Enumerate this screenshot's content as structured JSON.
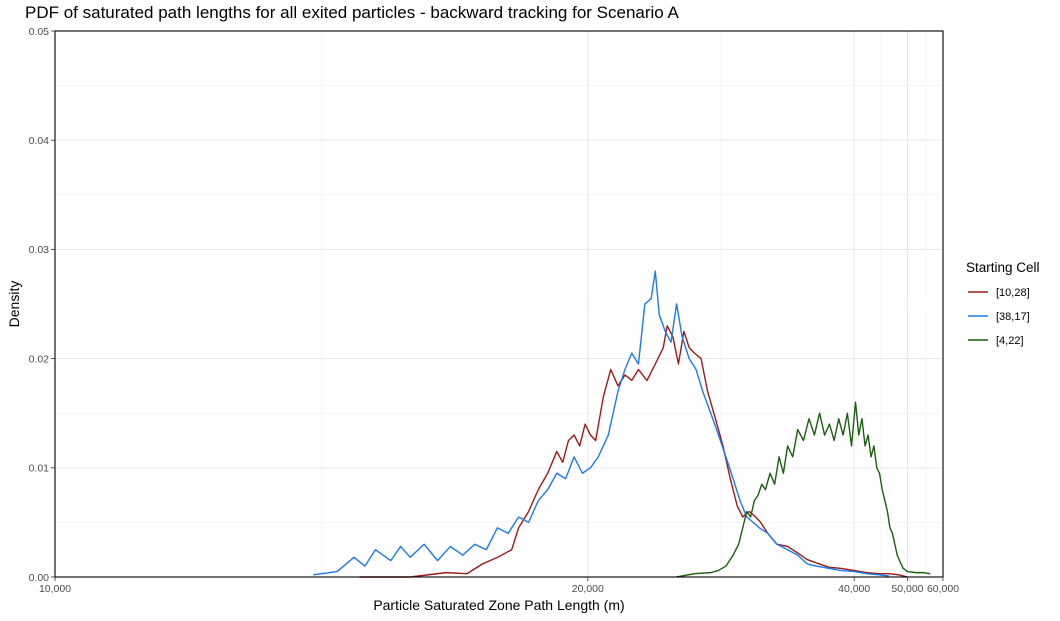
{
  "chart_data": {
    "type": "line",
    "title": "PDF of saturated path lengths for all exited particles - backward tracking for Scenario A",
    "xlabel": "Particle Saturated Zone Path Length (m)",
    "ylabel": "Density",
    "xlim": [
      10000,
      60000
    ],
    "ylim": [
      0,
      0.05
    ],
    "x_scale": "reciprocal",
    "xticks": [
      10000,
      20000,
      40000,
      50000,
      60000
    ],
    "xtick_labels": [
      "10,000",
      "20,000",
      "40,000",
      "50,000",
      "60,000"
    ],
    "yticks": [
      0,
      0.01,
      0.02,
      0.03,
      0.04,
      0.05
    ],
    "ytick_labels": [
      "0.00",
      "0.01",
      "0.02",
      "0.03",
      "0.04",
      "0.05"
    ],
    "grid": true,
    "legend": {
      "title": "Starting Cell",
      "position": "right"
    },
    "series": [
      {
        "name": "[10,28]",
        "color": "#9e1a1a",
        "points": [
          [
            14000,
            0.0
          ],
          [
            15000,
            0.0
          ],
          [
            15800,
            0.0004
          ],
          [
            16300,
            0.0003
          ],
          [
            16700,
            0.0012
          ],
          [
            17100,
            0.0018
          ],
          [
            17500,
            0.0025
          ],
          [
            17700,
            0.0045
          ],
          [
            18000,
            0.006
          ],
          [
            18300,
            0.008
          ],
          [
            18600,
            0.0095
          ],
          [
            18900,
            0.0115
          ],
          [
            19100,
            0.0105
          ],
          [
            19300,
            0.0125
          ],
          [
            19500,
            0.013
          ],
          [
            19700,
            0.012
          ],
          [
            19900,
            0.014
          ],
          [
            20100,
            0.013
          ],
          [
            20300,
            0.0125
          ],
          [
            20600,
            0.0165
          ],
          [
            20900,
            0.019
          ],
          [
            21200,
            0.0175
          ],
          [
            21500,
            0.0185
          ],
          [
            21800,
            0.018
          ],
          [
            22100,
            0.019
          ],
          [
            22500,
            0.018
          ],
          [
            22900,
            0.0195
          ],
          [
            23300,
            0.021
          ],
          [
            23500,
            0.023
          ],
          [
            23800,
            0.022
          ],
          [
            24100,
            0.0195
          ],
          [
            24400,
            0.0225
          ],
          [
            24700,
            0.021
          ],
          [
            25000,
            0.0205
          ],
          [
            25400,
            0.02
          ],
          [
            25800,
            0.017
          ],
          [
            26300,
            0.0145
          ],
          [
            26800,
            0.012
          ],
          [
            27300,
            0.009
          ],
          [
            27800,
            0.0065
          ],
          [
            28200,
            0.0055
          ],
          [
            28700,
            0.006
          ],
          [
            29200,
            0.0055
          ],
          [
            29600,
            0.005
          ],
          [
            30200,
            0.004
          ],
          [
            31000,
            0.003
          ],
          [
            32000,
            0.0028
          ],
          [
            33000,
            0.0022
          ],
          [
            34000,
            0.0016
          ],
          [
            35000,
            0.0013
          ],
          [
            36500,
            0.0009
          ],
          [
            38000,
            0.0008
          ],
          [
            40000,
            0.0006
          ],
          [
            42000,
            0.0004
          ],
          [
            44000,
            0.0003
          ],
          [
            46000,
            0.0003
          ],
          [
            48000,
            0.0002
          ],
          [
            50000,
            0.0
          ]
        ]
      },
      {
        "name": "[38,17]",
        "color": "#1a7bf0",
        "points": [
          [
            13200,
            0.0002
          ],
          [
            13600,
            0.0005
          ],
          [
            13900,
            0.0018
          ],
          [
            14100,
            0.001
          ],
          [
            14300,
            0.0025
          ],
          [
            14600,
            0.0015
          ],
          [
            14800,
            0.0028
          ],
          [
            15000,
            0.0018
          ],
          [
            15300,
            0.003
          ],
          [
            15600,
            0.0015
          ],
          [
            15900,
            0.0028
          ],
          [
            16200,
            0.002
          ],
          [
            16500,
            0.003
          ],
          [
            16800,
            0.0025
          ],
          [
            17100,
            0.0045
          ],
          [
            17400,
            0.004
          ],
          [
            17700,
            0.0055
          ],
          [
            18000,
            0.005
          ],
          [
            18300,
            0.007
          ],
          [
            18600,
            0.008
          ],
          [
            18900,
            0.0095
          ],
          [
            19200,
            0.009
          ],
          [
            19500,
            0.011
          ],
          [
            19800,
            0.0095
          ],
          [
            20100,
            0.01
          ],
          [
            20400,
            0.011
          ],
          [
            20800,
            0.013
          ],
          [
            21200,
            0.017
          ],
          [
            21500,
            0.019
          ],
          [
            21800,
            0.0205
          ],
          [
            22100,
            0.0195
          ],
          [
            22400,
            0.025
          ],
          [
            22700,
            0.0255
          ],
          [
            22900,
            0.028
          ],
          [
            23100,
            0.024
          ],
          [
            23400,
            0.0225
          ],
          [
            23700,
            0.0215
          ],
          [
            24000,
            0.025
          ],
          [
            24300,
            0.022
          ],
          [
            24700,
            0.02
          ],
          [
            25100,
            0.019
          ],
          [
            25500,
            0.017
          ],
          [
            26000,
            0.015
          ],
          [
            26500,
            0.013
          ],
          [
            27000,
            0.011
          ],
          [
            27500,
            0.009
          ],
          [
            28000,
            0.007
          ],
          [
            28500,
            0.0055
          ],
          [
            29000,
            0.005
          ],
          [
            29500,
            0.0045
          ],
          [
            30200,
            0.004
          ],
          [
            31000,
            0.003
          ],
          [
            32000,
            0.0025
          ],
          [
            33000,
            0.002
          ],
          [
            34000,
            0.0012
          ],
          [
            35000,
            0.001
          ],
          [
            36500,
            0.0008
          ],
          [
            38000,
            0.0006
          ],
          [
            40000,
            0.0005
          ],
          [
            42000,
            0.0003
          ],
          [
            44000,
            0.0002
          ],
          [
            46000,
            0.0001
          ]
        ]
      },
      {
        "name": "[4,22]",
        "color": "#1b5e0f",
        "points": [
          [
            24000,
            0.0
          ],
          [
            25000,
            0.0003
          ],
          [
            26000,
            0.0004
          ],
          [
            26500,
            0.0006
          ],
          [
            27000,
            0.001
          ],
          [
            27500,
            0.002
          ],
          [
            27900,
            0.003
          ],
          [
            28200,
            0.0045
          ],
          [
            28500,
            0.006
          ],
          [
            28800,
            0.0055
          ],
          [
            29100,
            0.007
          ],
          [
            29400,
            0.0075
          ],
          [
            29700,
            0.0085
          ],
          [
            30000,
            0.008
          ],
          [
            30400,
            0.0095
          ],
          [
            30800,
            0.0085
          ],
          [
            31200,
            0.011
          ],
          [
            31600,
            0.0095
          ],
          [
            32000,
            0.012
          ],
          [
            32500,
            0.011
          ],
          [
            33000,
            0.0135
          ],
          [
            33600,
            0.0125
          ],
          [
            34200,
            0.0145
          ],
          [
            34800,
            0.013
          ],
          [
            35400,
            0.015
          ],
          [
            36000,
            0.013
          ],
          [
            36600,
            0.014
          ],
          [
            37200,
            0.0125
          ],
          [
            37800,
            0.0145
          ],
          [
            38400,
            0.013
          ],
          [
            39000,
            0.015
          ],
          [
            39600,
            0.012
          ],
          [
            40200,
            0.016
          ],
          [
            40700,
            0.013
          ],
          [
            41200,
            0.0145
          ],
          [
            41700,
            0.012
          ],
          [
            42200,
            0.013
          ],
          [
            42700,
            0.011
          ],
          [
            43200,
            0.012
          ],
          [
            43700,
            0.01
          ],
          [
            44200,
            0.0095
          ],
          [
            44700,
            0.008
          ],
          [
            45200,
            0.007
          ],
          [
            45700,
            0.006
          ],
          [
            46200,
            0.0045
          ],
          [
            46700,
            0.004
          ],
          [
            47200,
            0.003
          ],
          [
            47700,
            0.002
          ],
          [
            48200,
            0.0015
          ],
          [
            49000,
            0.0008
          ],
          [
            50000,
            0.0005
          ],
          [
            52000,
            0.0004
          ],
          [
            54000,
            0.0004
          ],
          [
            56000,
            0.0003
          ]
        ]
      }
    ]
  }
}
